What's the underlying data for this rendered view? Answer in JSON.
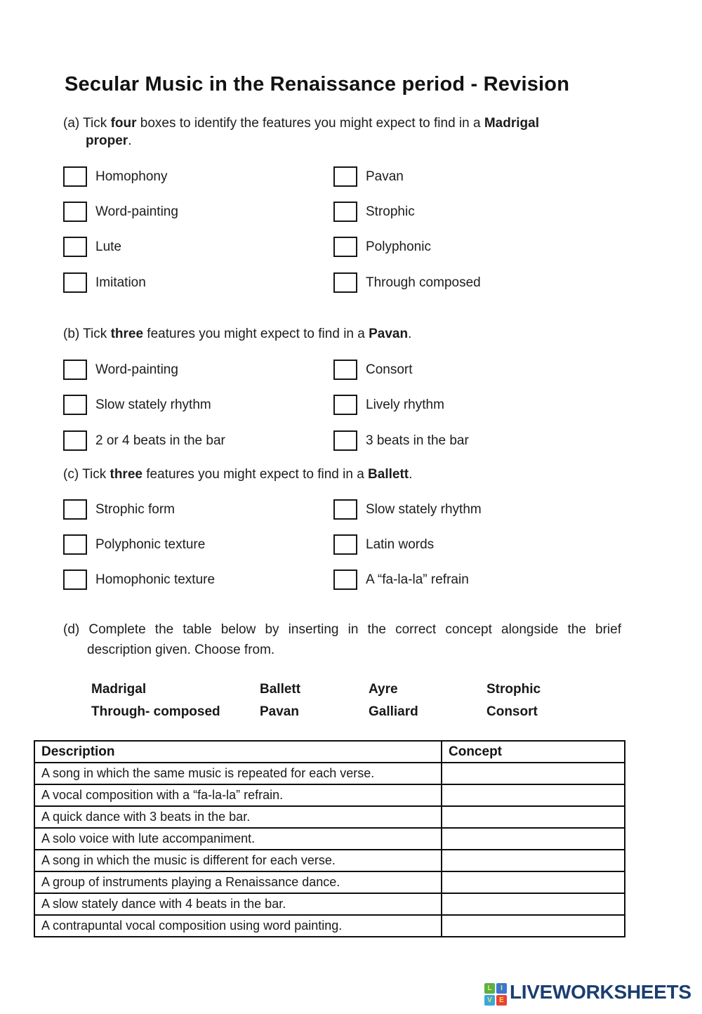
{
  "title": "Secular Music in the Renaissance period - Revision",
  "sections": {
    "a": {
      "prompt_line1": [
        {
          "t": "(a) Tick "
        },
        {
          "t": "four",
          "b": true
        },
        {
          "t": " boxes to identify the features you might expect to find in a "
        },
        {
          "t": "Madrigal",
          "b": true
        }
      ],
      "prompt_line2": [
        {
          "t": "proper",
          "b": true
        },
        {
          "t": "."
        }
      ],
      "left": [
        "Homophony",
        "Word-painting",
        "Lute",
        "Imitation"
      ],
      "right": [
        "Pavan",
        "Strophic",
        "Polyphonic",
        "Through composed"
      ]
    },
    "b": {
      "prompt": [
        {
          "t": "(b) Tick "
        },
        {
          "t": "three",
          "b": true
        },
        {
          "t": " features you might expect to find in a "
        },
        {
          "t": "Pavan",
          "b": true
        },
        {
          "t": "."
        }
      ],
      "left": [
        "Word-painting",
        "Slow stately rhythm",
        "2 or 4 beats in the bar"
      ],
      "right": [
        "Consort",
        "Lively rhythm",
        "3 beats in the bar"
      ]
    },
    "c": {
      "prompt": [
        {
          "t": "(c) Tick "
        },
        {
          "t": "three",
          "b": true
        },
        {
          "t": " features you might expect to find in a "
        },
        {
          "t": "Ballett",
          "b": true
        },
        {
          "t": "."
        }
      ],
      "left": [
        "Strophic form",
        "Polyphonic texture",
        "Homophonic texture"
      ],
      "right": [
        "Slow stately rhythm",
        "Latin words",
        "A “fa-la-la” refrain"
      ]
    },
    "d": {
      "prompt_line1": "(d) Complete the table below by inserting in the correct concept alongside the brief",
      "prompt_line2": "description given. Choose from.",
      "word_bank": [
        [
          "Madrigal",
          "Ballett",
          "Ayre",
          "Strophic"
        ],
        [
          "Through- composed",
          "Pavan",
          "Galliard",
          "Consort"
        ]
      ],
      "table": {
        "headers": [
          "Description",
          "Concept"
        ],
        "rows": [
          "A song in which the same music is repeated for each verse.",
          "A vocal composition with a “fa-la-la” refrain.",
          "A quick dance with 3 beats in the bar.",
          "A solo voice with lute accompaniment.",
          "A song in which the music is different for each verse.",
          "A group of instruments playing a Renaissance dance.",
          "A slow stately dance with 4 beats in the bar.",
          "A contrapuntal vocal composition using word painting."
        ]
      }
    }
  },
  "footer": {
    "logo_text": "LIVEWORKSHEETS",
    "logo_text_color": "#1b3e70",
    "logo_tiles": [
      {
        "letter": "L",
        "color": "#58b247"
      },
      {
        "letter": "I",
        "color": "#3b77d2"
      },
      {
        "letter": "V",
        "color": "#38a8da"
      },
      {
        "letter": "E",
        "color": "#e8403a"
      }
    ],
    "tile_letter_color": "#ffe14d"
  }
}
